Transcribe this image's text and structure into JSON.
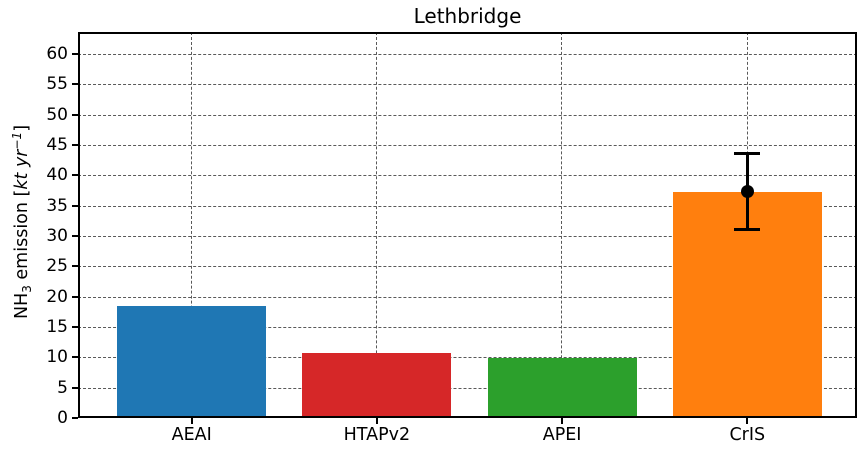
{
  "chart_data": {
    "type": "bar",
    "title": "Lethbridge",
    "xlabel": "",
    "ylabel": "NH3 emission [kt yr-1]",
    "ylabel_parts": {
      "prefix": "NH",
      "sub": "3",
      "mid": " emission [",
      "italic": "kt yr",
      "sup": "−1",
      "suffix": "]"
    },
    "categories": [
      "AEAI",
      "HTAPv2",
      "APEI",
      "CrIS"
    ],
    "values": [
      18.4,
      10.7,
      9.9,
      37.3
    ],
    "bar_colors": [
      "#1f77b4",
      "#d62728",
      "#2ca02c",
      "#ff7f0e"
    ],
    "yticks": [
      0,
      5,
      10,
      15,
      20,
      25,
      30,
      35,
      40,
      45,
      50,
      55,
      60
    ],
    "ylim": [
      0,
      63.6
    ],
    "grid": "both-axes dashed gray",
    "legend": "none",
    "error_bar": {
      "category": "CrIS",
      "center": 37.3,
      "lower": 31.0,
      "upper": 43.6,
      "marker": "black-dot"
    }
  }
}
